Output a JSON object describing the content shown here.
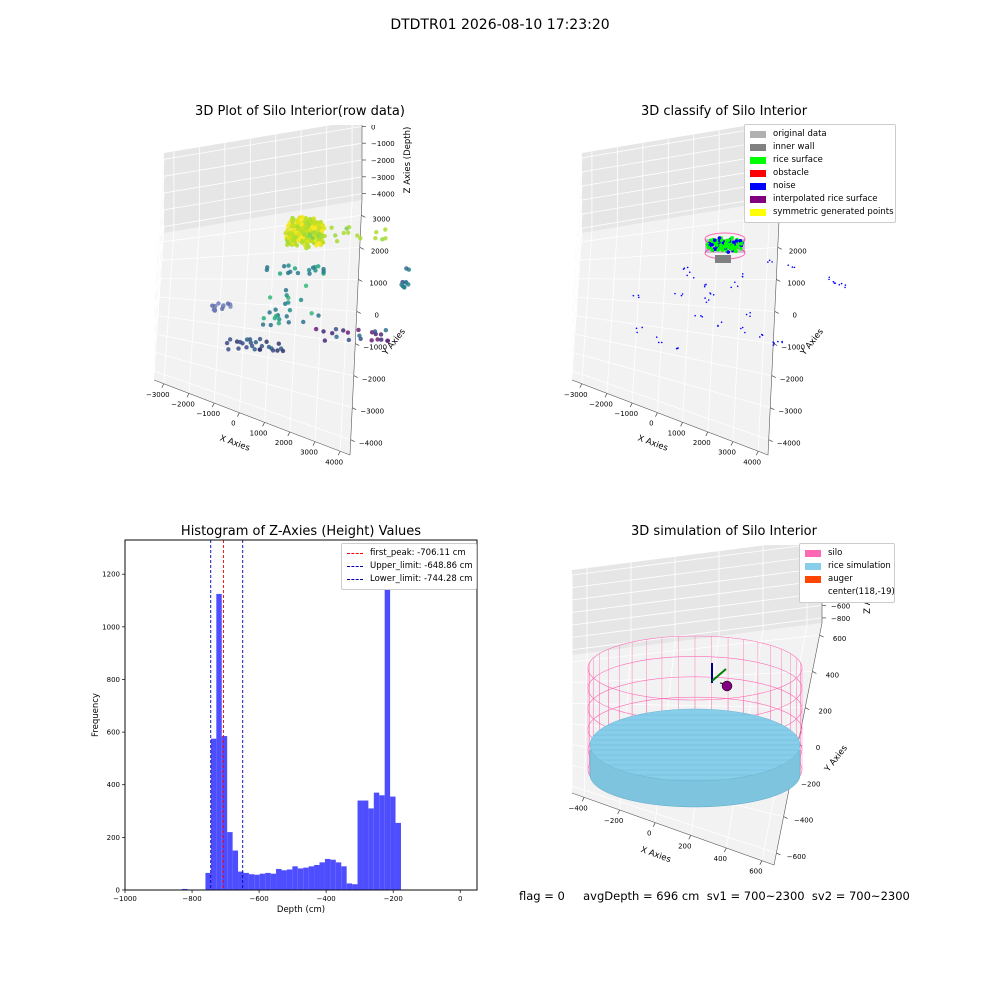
{
  "suptitle": "DTDTR01 2026-08-10 17:23:20",
  "colors": {
    "hist_bar": "#4444ff",
    "first_peak": "#ff0000",
    "limit": "#0000aa",
    "silo": "#ff69b4",
    "rice": "#87ceeb",
    "auger": "#ff4500",
    "original": "#b0b0b0",
    "inner_wall": "#808080",
    "rice_surface": "#00ff00",
    "obstacle": "#ff0000",
    "noise": "#0000ff",
    "interpolated": "#800080",
    "symmetric": "#ffff00"
  },
  "plot1": {
    "title": "3D Plot of Silo Interior(row data)",
    "xlabel": "X Axies",
    "ylabel": "Y Axies",
    "zlabel": "Z Axies (Depth)",
    "x_ticks": [
      "−3000",
      "−2000",
      "−1000",
      "0",
      "1000",
      "2000",
      "3000",
      "4000"
    ],
    "y_ticks": [
      "3000",
      "2000",
      "1000",
      "0",
      "−1000",
      "−2000",
      "−3000",
      "−4000"
    ],
    "z_ticks": [
      "0",
      "−1000",
      "−2000",
      "−3000",
      "−4000"
    ]
  },
  "plot2": {
    "title": "3D classify of Silo Interior",
    "xlabel": "X Axies",
    "ylabel": "Y Axies",
    "zlabel": "Z Axies (Depth)",
    "x_ticks": [
      "−3000",
      "−2000",
      "−1000",
      "0",
      "1000",
      "2000",
      "3000",
      "4000"
    ],
    "y_ticks": [
      "3000",
      "2000",
      "1000",
      "0",
      "−1000",
      "−2000",
      "−3000",
      "−4000"
    ],
    "z_ticks": [
      "0",
      "−1000",
      "−2000",
      "−3000",
      "−4000",
      "−5000"
    ],
    "legend": [
      "original data",
      "inner wall",
      "rice surface",
      "obstacle",
      "noise",
      "interpolated rice surface",
      "symmetric generated points"
    ]
  },
  "plot3": {
    "title": "Histogram of Z-Axies (Height) Values",
    "xlabel": "Depth (cm)",
    "ylabel": "Frequency",
    "legend": [
      "first_peak: -706.11 cm",
      "Upper_limit: -648.86 cm",
      "Lower_limit: -744.28 cm"
    ]
  },
  "plot4": {
    "title": "3D simulation of Silo Interior",
    "xlabel": "X Axies",
    "ylabel": "Y Axies",
    "zlabel": "Z Axies (Depth)",
    "x_ticks": [
      "−400",
      "−200",
      "0",
      "200",
      "400",
      "600"
    ],
    "y_ticks": [
      "600",
      "400",
      "200",
      "0",
      "−200",
      "−400",
      "−600"
    ],
    "z_ticks": [
      "400",
      "200",
      "0",
      "−200",
      "−400",
      "−600",
      "−800"
    ],
    "legend": [
      "silo",
      "rice simulation",
      "auger",
      "center(118,-19)"
    ]
  },
  "footer": "flag = 0     avgDepth = 696 cm  sv1 = 700~2300  sv2 = 700~2300",
  "chart_data": [
    {
      "type": "scatter",
      "title": "3D Plot of Silo Interior(row data)",
      "xlabel": "X Axies",
      "ylabel": "Y Axies",
      "zlabel": "Z Axies (Depth)",
      "xlim": [
        -3000,
        4000
      ],
      "ylim": [
        -4000,
        3000
      ],
      "zlim": [
        -4500,
        500
      ],
      "grid": true
    },
    {
      "type": "scatter",
      "title": "3D classify of Silo Interior",
      "xlabel": "X Axies",
      "ylabel": "Y Axies",
      "zlabel": "Z Axies (Depth)",
      "xlim": [
        -3000,
        4000
      ],
      "ylim": [
        -4000,
        3000
      ],
      "zlim": [
        -5500,
        500
      ],
      "legend_position": "top-right",
      "grid": true
    },
    {
      "type": "bar",
      "title": "Histogram of Z-Axies (Height) Values",
      "xlabel": "Depth (cm)",
      "ylabel": "Frequency",
      "xlim": [
        -1000,
        50
      ],
      "ylim": [
        0,
        1330
      ],
      "x_ticks": [
        -1000,
        -800,
        -600,
        -400,
        -200,
        0
      ],
      "y_ticks": [
        0,
        200,
        400,
        600,
        800,
        1000,
        1200
      ],
      "bin_width": 16.2,
      "bin_start": -760,
      "values": [
        65,
        575,
        1125,
        585,
        220,
        150,
        70,
        65,
        60,
        58,
        62,
        65,
        62,
        80,
        75,
        78,
        90,
        82,
        85,
        90,
        95,
        105,
        118,
        115,
        105,
        90,
        25,
        22,
        340,
        340,
        310,
        370,
        360,
        1250,
        355,
        255
      ],
      "small_bins": [
        {
          "x": -830,
          "value": 4
        },
        {
          "x": -813,
          "value": 2
        },
        {
          "x": -780,
          "value": 2
        }
      ],
      "vlines": [
        {
          "name": "first_peak",
          "x": -706.11,
          "color": "#ff0000"
        },
        {
          "name": "Upper_limit",
          "x": -648.86,
          "color": "#0000aa"
        },
        {
          "name": "Lower_limit",
          "x": -744.28,
          "color": "#0000aa"
        }
      ],
      "legend_position": "top-right"
    },
    {
      "type": "surface",
      "title": "3D simulation of Silo Interior",
      "xlabel": "X Axies",
      "ylabel": "Y Axies",
      "zlabel": "Z Axies (Depth)",
      "xlim": [
        -500,
        700
      ],
      "ylim": [
        -700,
        700
      ],
      "zlim": [
        -950,
        450
      ],
      "center": [
        118,
        -19
      ],
      "legend_position": "top-right"
    }
  ]
}
